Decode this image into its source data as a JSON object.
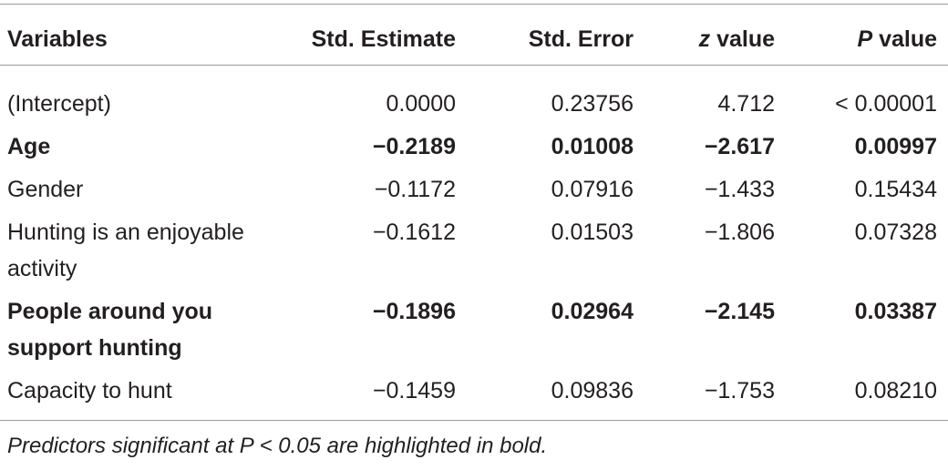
{
  "table": {
    "header": [
      [
        "Variables"
      ],
      [
        "Std. Estimate"
      ],
      [
        "Std. Error"
      ],
      [
        "z",
        " value"
      ],
      [
        "P",
        " value"
      ]
    ],
    "rows": [
      [
        "(Intercept)",
        "0.0000",
        "0.23756",
        "4.712",
        "< 0.00001"
      ],
      [
        "Age",
        "−0.2189",
        "0.01008",
        "−2.617",
        "0.00997"
      ],
      [
        "Gender",
        "−0.1172",
        "0.07916",
        "−1.433",
        "0.15434"
      ],
      [
        "Hunting is an enjoyable activity",
        "−0.1612",
        "0.01503",
        "−1.806",
        "0.07328"
      ],
      [
        "People around you support hunting",
        "−0.1896",
        "0.02964",
        "−2.145",
        "0.03387"
      ],
      [
        "Capacity to hunt",
        "−0.1459",
        "0.09836",
        "−1.753",
        "0.08210"
      ]
    ],
    "bold": [
      false,
      true,
      false,
      false,
      true,
      false
    ],
    "footnote": "Predictors significant at P < 0.05 are highlighted in bold."
  }
}
